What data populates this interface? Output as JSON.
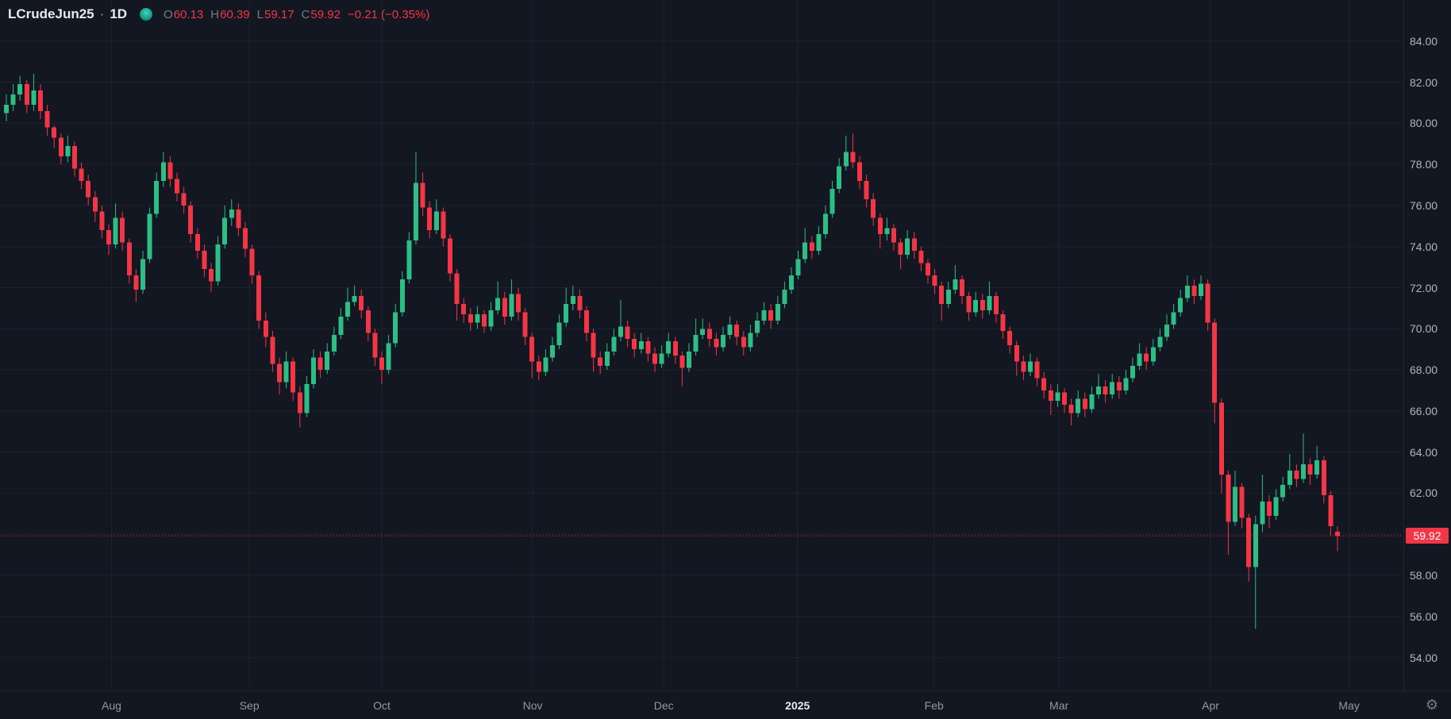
{
  "header": {
    "symbol": "LCrudeJun25",
    "separator": "·",
    "interval": "1D",
    "ohlc": {
      "o_label": "O",
      "o_value": "60.13",
      "h_label": "H",
      "h_value": "60.39",
      "l_label": "L",
      "l_value": "59.17",
      "c_label": "C",
      "c_value": "59.92",
      "change": "−0.21 (−0.35%)"
    }
  },
  "corner": {
    "gear_glyph": "⚙"
  },
  "chart_data": {
    "type": "candlestick",
    "title": "LCrudeJun25 1D candlestick chart",
    "legend_position": "top-left",
    "grid": true,
    "colors": {
      "up": "#2ebd85",
      "down": "#f23645",
      "grid": "rgba(240,243,250,0.05)",
      "background": "#131722",
      "axis_text": "#b2b5be",
      "last_price_line": "#f23645",
      "last_price_label_bg": "#f23645"
    },
    "scale": {
      "price_at_top": 86.0,
      "price_at_bottom": 52.4,
      "x_origin": 8,
      "x_step": 8.6,
      "body_width": 6
    },
    "y_ticks": [
      {
        "value": 84,
        "label": "84.00"
      },
      {
        "value": 82,
        "label": "82.00"
      },
      {
        "value": 80,
        "label": "80.00"
      },
      {
        "value": 78,
        "label": "78.00"
      },
      {
        "value": 76,
        "label": "76.00"
      },
      {
        "value": 74,
        "label": "74.00"
      },
      {
        "value": 72,
        "label": "72.00"
      },
      {
        "value": 70,
        "label": "70.00"
      },
      {
        "value": 68,
        "label": "68.00"
      },
      {
        "value": 66,
        "label": "66.00"
      },
      {
        "value": 64,
        "label": "64.00"
      },
      {
        "value": 62,
        "label": "62.00"
      },
      {
        "value": 60,
        "label": "60.00"
      },
      {
        "value": 58,
        "label": "58.00"
      },
      {
        "value": 56,
        "label": "56.00"
      },
      {
        "value": 54,
        "label": "54.00"
      }
    ],
    "x_labels": [
      {
        "text": "Aug",
        "i": 15.4
      },
      {
        "text": "Sep",
        "i": 35.6
      },
      {
        "text": "Oct",
        "i": 55.0
      },
      {
        "text": "Nov",
        "i": 77.1
      },
      {
        "text": "Dec",
        "i": 96.3
      },
      {
        "text": "2025",
        "i": 115.9,
        "emphasis": true
      },
      {
        "text": "Feb",
        "i": 135.9
      },
      {
        "text": "Mar",
        "i": 154.2
      },
      {
        "text": "Apr",
        "i": 176.4
      },
      {
        "text": "May",
        "i": 196.7
      }
    ],
    "last_price": {
      "value": 59.92,
      "label": "59.92"
    },
    "candles_format": [
      "open",
      "high",
      "low",
      "close"
    ],
    "candles": [
      [
        80.5,
        81.4,
        80.1,
        80.9
      ],
      [
        80.9,
        81.9,
        80.6,
        81.4
      ],
      [
        81.4,
        82.3,
        81.1,
        81.9
      ],
      [
        81.9,
        82.1,
        80.5,
        80.9
      ],
      [
        80.9,
        82.4,
        80.6,
        81.6
      ],
      [
        81.6,
        81.9,
        80.2,
        80.6
      ],
      [
        80.6,
        80.9,
        79.4,
        79.8
      ],
      [
        79.8,
        79.9,
        78.8,
        79.3
      ],
      [
        79.3,
        79.5,
        78.0,
        78.4
      ],
      [
        78.4,
        79.4,
        78.1,
        78.9
      ],
      [
        78.9,
        79.1,
        77.4,
        77.8
      ],
      [
        77.8,
        78.1,
        76.8,
        77.2
      ],
      [
        77.2,
        77.5,
        76.0,
        76.4
      ],
      [
        76.4,
        76.7,
        75.2,
        75.7
      ],
      [
        75.7,
        76.0,
        74.4,
        74.8
      ],
      [
        74.8,
        75.1,
        73.6,
        74.1
      ],
      [
        74.1,
        76.1,
        73.9,
        75.4
      ],
      [
        75.4,
        75.7,
        73.8,
        74.2
      ],
      [
        74.2,
        74.4,
        72.2,
        72.6
      ],
      [
        72.6,
        72.9,
        71.3,
        71.9
      ],
      [
        71.9,
        73.8,
        71.7,
        73.4
      ],
      [
        73.4,
        75.9,
        73.2,
        75.6
      ],
      [
        75.6,
        77.6,
        75.4,
        77.2
      ],
      [
        77.2,
        78.6,
        76.9,
        78.1
      ],
      [
        78.1,
        78.4,
        76.9,
        77.3
      ],
      [
        77.3,
        77.6,
        76.2,
        76.6
      ],
      [
        76.6,
        76.9,
        75.6,
        76.0
      ],
      [
        76.0,
        76.2,
        74.2,
        74.6
      ],
      [
        74.6,
        74.9,
        73.4,
        73.8
      ],
      [
        73.8,
        74.1,
        72.5,
        72.9
      ],
      [
        72.9,
        73.2,
        71.8,
        72.3
      ],
      [
        72.3,
        74.5,
        72.1,
        74.1
      ],
      [
        74.1,
        76.0,
        73.9,
        75.4
      ],
      [
        75.4,
        76.3,
        75.0,
        75.8
      ],
      [
        75.8,
        76.1,
        74.5,
        74.9
      ],
      [
        74.9,
        75.2,
        73.5,
        73.9
      ],
      [
        73.9,
        74.1,
        72.2,
        72.6
      ],
      [
        72.6,
        72.8,
        70.0,
        70.4
      ],
      [
        70.4,
        70.8,
        69.1,
        69.6
      ],
      [
        69.6,
        69.9,
        67.9,
        68.3
      ],
      [
        68.3,
        68.6,
        66.8,
        67.4
      ],
      [
        67.4,
        68.9,
        67.1,
        68.4
      ],
      [
        68.4,
        68.6,
        66.5,
        66.9
      ],
      [
        66.9,
        67.2,
        65.2,
        65.9
      ],
      [
        65.9,
        67.7,
        65.7,
        67.3
      ],
      [
        67.3,
        69.0,
        67.1,
        68.6
      ],
      [
        68.6,
        68.9,
        67.6,
        68.0
      ],
      [
        68.0,
        69.3,
        67.8,
        68.9
      ],
      [
        68.9,
        70.1,
        68.7,
        69.7
      ],
      [
        69.7,
        71.0,
        69.5,
        70.6
      ],
      [
        70.6,
        72.0,
        70.4,
        71.3
      ],
      [
        71.3,
        72.1,
        71.1,
        71.6
      ],
      [
        71.6,
        71.9,
        70.5,
        70.9
      ],
      [
        70.9,
        71.1,
        69.4,
        69.8
      ],
      [
        69.8,
        70.0,
        68.2,
        68.6
      ],
      [
        68.6,
        68.9,
        67.3,
        68.0
      ],
      [
        68.0,
        69.7,
        67.8,
        69.3
      ],
      [
        69.3,
        71.2,
        69.1,
        70.8
      ],
      [
        70.8,
        72.8,
        70.6,
        72.4
      ],
      [
        72.4,
        74.7,
        72.2,
        74.3
      ],
      [
        74.3,
        78.6,
        74.1,
        77.1
      ],
      [
        77.1,
        77.6,
        75.5,
        75.9
      ],
      [
        75.9,
        76.2,
        74.4,
        74.8
      ],
      [
        74.8,
        76.3,
        74.6,
        75.7
      ],
      [
        75.7,
        75.9,
        74.0,
        74.4
      ],
      [
        74.4,
        74.6,
        72.3,
        72.7
      ],
      [
        72.7,
        72.9,
        70.4,
        71.2
      ],
      [
        71.2,
        71.5,
        70.3,
        70.7
      ],
      [
        70.7,
        71.0,
        69.9,
        70.3
      ],
      [
        70.3,
        71.1,
        70.0,
        70.7
      ],
      [
        70.7,
        70.9,
        69.8,
        70.1
      ],
      [
        70.1,
        71.3,
        69.9,
        70.9
      ],
      [
        70.9,
        72.3,
        70.7,
        71.5
      ],
      [
        71.5,
        71.8,
        70.2,
        70.6
      ],
      [
        70.6,
        72.4,
        70.4,
        71.7
      ],
      [
        71.7,
        72.0,
        70.4,
        70.8
      ],
      [
        70.8,
        71.0,
        69.2,
        69.6
      ],
      [
        69.6,
        69.8,
        67.6,
        68.4
      ],
      [
        68.4,
        68.7,
        67.5,
        67.9
      ],
      [
        67.9,
        69.0,
        67.7,
        68.6
      ],
      [
        68.6,
        69.6,
        68.4,
        69.2
      ],
      [
        69.2,
        70.7,
        69.0,
        70.3
      ],
      [
        70.3,
        72.0,
        70.1,
        71.2
      ],
      [
        71.2,
        72.1,
        70.9,
        71.6
      ],
      [
        71.6,
        71.9,
        70.5,
        70.9
      ],
      [
        70.9,
        71.1,
        69.4,
        69.8
      ],
      [
        69.8,
        70.0,
        67.9,
        68.6
      ],
      [
        68.6,
        68.9,
        67.8,
        68.2
      ],
      [
        68.2,
        69.3,
        68.0,
        68.9
      ],
      [
        68.9,
        70.0,
        68.7,
        69.6
      ],
      [
        69.6,
        71.4,
        69.4,
        70.1
      ],
      [
        70.1,
        70.4,
        69.1,
        69.5
      ],
      [
        69.5,
        69.8,
        68.6,
        69.0
      ],
      [
        69.0,
        69.8,
        68.8,
        69.4
      ],
      [
        69.4,
        69.6,
        68.4,
        68.8
      ],
      [
        68.8,
        69.1,
        67.9,
        68.3
      ],
      [
        68.3,
        69.2,
        68.1,
        68.8
      ],
      [
        68.8,
        69.8,
        68.6,
        69.4
      ],
      [
        69.4,
        69.6,
        68.3,
        68.7
      ],
      [
        68.7,
        68.9,
        67.2,
        68.1
      ],
      [
        68.1,
        69.3,
        67.9,
        68.9
      ],
      [
        68.9,
        70.5,
        68.7,
        69.7
      ],
      [
        69.7,
        70.5,
        69.5,
        70.0
      ],
      [
        70.0,
        70.3,
        69.1,
        69.5
      ],
      [
        69.5,
        69.8,
        68.7,
        69.1
      ],
      [
        69.1,
        70.1,
        68.9,
        69.7
      ],
      [
        69.7,
        70.6,
        69.5,
        70.2
      ],
      [
        70.2,
        70.4,
        69.2,
        69.6
      ],
      [
        69.6,
        69.9,
        68.7,
        69.1
      ],
      [
        69.1,
        70.2,
        68.9,
        69.8
      ],
      [
        69.8,
        70.8,
        69.6,
        70.4
      ],
      [
        70.4,
        71.3,
        70.2,
        70.9
      ],
      [
        70.9,
        71.2,
        70.0,
        70.4
      ],
      [
        70.4,
        71.6,
        70.2,
        71.2
      ],
      [
        71.2,
        72.3,
        71.0,
        71.9
      ],
      [
        71.9,
        73.0,
        71.7,
        72.6
      ],
      [
        72.6,
        73.8,
        72.4,
        73.4
      ],
      [
        73.4,
        74.9,
        73.2,
        74.2
      ],
      [
        74.2,
        74.5,
        73.4,
        73.8
      ],
      [
        73.8,
        75.0,
        73.6,
        74.6
      ],
      [
        74.6,
        76.0,
        74.4,
        75.6
      ],
      [
        75.6,
        77.2,
        75.4,
        76.8
      ],
      [
        76.8,
        78.3,
        76.6,
        77.9
      ],
      [
        77.9,
        79.4,
        77.7,
        78.6
      ],
      [
        78.6,
        79.5,
        77.8,
        78.1
      ],
      [
        78.1,
        78.4,
        76.8,
        77.2
      ],
      [
        77.2,
        77.5,
        75.9,
        76.3
      ],
      [
        76.3,
        76.6,
        75.0,
        75.4
      ],
      [
        75.4,
        75.6,
        73.9,
        74.6
      ],
      [
        74.6,
        75.4,
        74.3,
        74.9
      ],
      [
        74.9,
        75.1,
        73.8,
        74.2
      ],
      [
        74.2,
        74.4,
        72.9,
        73.6
      ],
      [
        73.6,
        74.8,
        73.4,
        74.4
      ],
      [
        74.4,
        74.7,
        73.4,
        73.8
      ],
      [
        73.8,
        74.0,
        72.8,
        73.2
      ],
      [
        73.2,
        73.4,
        72.2,
        72.6
      ],
      [
        72.6,
        72.9,
        71.7,
        72.1
      ],
      [
        72.1,
        72.3,
        70.4,
        71.2
      ],
      [
        71.2,
        72.3,
        71.0,
        71.9
      ],
      [
        71.9,
        73.1,
        71.7,
        72.4
      ],
      [
        72.4,
        72.6,
        71.2,
        71.6
      ],
      [
        71.6,
        71.8,
        70.4,
        70.8
      ],
      [
        70.8,
        71.8,
        70.6,
        71.4
      ],
      [
        71.4,
        71.7,
        70.5,
        70.9
      ],
      [
        70.9,
        72.3,
        70.7,
        71.6
      ],
      [
        71.6,
        71.8,
        70.3,
        70.7
      ],
      [
        70.7,
        70.9,
        69.5,
        69.9
      ],
      [
        69.9,
        70.1,
        68.8,
        69.2
      ],
      [
        69.2,
        69.4,
        67.7,
        68.4
      ],
      [
        68.4,
        68.7,
        67.5,
        67.9
      ],
      [
        67.9,
        68.8,
        67.7,
        68.4
      ],
      [
        68.4,
        68.6,
        67.2,
        67.6
      ],
      [
        67.6,
        67.9,
        66.6,
        67.0
      ],
      [
        67.0,
        67.3,
        65.8,
        66.5
      ],
      [
        66.5,
        67.3,
        66.2,
        66.9
      ],
      [
        66.9,
        67.1,
        65.9,
        66.3
      ],
      [
        66.3,
        66.6,
        65.3,
        65.9
      ],
      [
        65.9,
        67.0,
        65.7,
        66.6
      ],
      [
        66.6,
        66.9,
        65.7,
        66.1
      ],
      [
        66.1,
        67.2,
        65.9,
        66.8
      ],
      [
        66.8,
        67.8,
        66.6,
        67.2
      ],
      [
        67.2,
        67.5,
        66.4,
        66.8
      ],
      [
        66.8,
        67.8,
        66.6,
        67.4
      ],
      [
        67.4,
        67.7,
        66.6,
        67.0
      ],
      [
        67.0,
        68.0,
        66.8,
        67.6
      ],
      [
        67.6,
        68.6,
        67.4,
        68.2
      ],
      [
        68.2,
        69.3,
        68.0,
        68.8
      ],
      [
        68.8,
        69.1,
        68.0,
        68.4
      ],
      [
        68.4,
        69.5,
        68.2,
        69.1
      ],
      [
        69.1,
        70.0,
        68.9,
        69.6
      ],
      [
        69.6,
        70.7,
        69.4,
        70.2
      ],
      [
        70.2,
        71.2,
        70.0,
        70.8
      ],
      [
        70.8,
        71.9,
        70.6,
        71.5
      ],
      [
        71.5,
        72.6,
        71.3,
        72.1
      ],
      [
        72.1,
        72.4,
        71.2,
        71.6
      ],
      [
        71.6,
        72.6,
        71.4,
        72.2
      ],
      [
        72.2,
        72.4,
        69.9,
        70.3
      ],
      [
        70.3,
        70.5,
        65.4,
        66.4
      ],
      [
        66.4,
        66.6,
        62.0,
        62.9
      ],
      [
        62.9,
        63.1,
        59.0,
        60.6
      ],
      [
        60.6,
        63.1,
        60.4,
        62.3
      ],
      [
        62.3,
        62.5,
        60.3,
        60.8
      ],
      [
        60.8,
        61.0,
        57.7,
        58.4
      ],
      [
        58.4,
        60.9,
        55.4,
        60.5
      ],
      [
        60.5,
        62.9,
        60.1,
        61.6
      ],
      [
        61.6,
        61.9,
        60.3,
        60.9
      ],
      [
        60.9,
        62.2,
        60.7,
        61.8
      ],
      [
        61.8,
        62.8,
        61.6,
        62.4
      ],
      [
        62.4,
        63.9,
        62.2,
        63.1
      ],
      [
        63.1,
        63.4,
        62.3,
        62.7
      ],
      [
        62.7,
        64.9,
        62.5,
        63.4
      ],
      [
        63.4,
        63.7,
        62.4,
        62.9
      ],
      [
        62.9,
        64.3,
        62.7,
        63.6
      ],
      [
        63.6,
        63.8,
        61.5,
        61.9
      ],
      [
        61.9,
        62.1,
        59.9,
        60.4
      ],
      [
        60.13,
        60.39,
        59.17,
        59.92
      ]
    ]
  }
}
